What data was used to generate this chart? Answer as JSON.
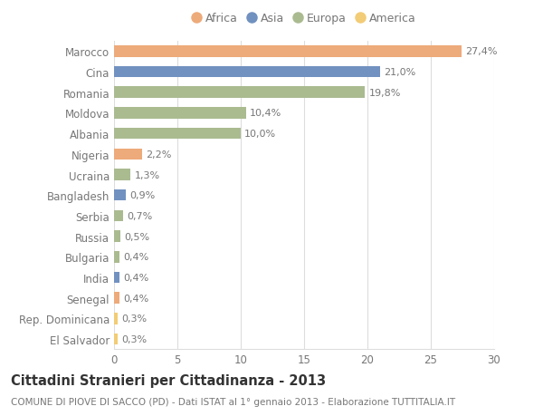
{
  "categories": [
    "El Salvador",
    "Rep. Dominicana",
    "Senegal",
    "India",
    "Bulgaria",
    "Russia",
    "Serbia",
    "Bangladesh",
    "Ucraina",
    "Nigeria",
    "Albania",
    "Moldova",
    "Romania",
    "Cina",
    "Marocco"
  ],
  "values": [
    0.3,
    0.3,
    0.4,
    0.4,
    0.4,
    0.5,
    0.7,
    0.9,
    1.3,
    2.2,
    10.0,
    10.4,
    19.8,
    21.0,
    27.4
  ],
  "continents": [
    "America",
    "America",
    "Africa",
    "Asia",
    "Europa",
    "Europa",
    "Europa",
    "Asia",
    "Europa",
    "Africa",
    "Europa",
    "Europa",
    "Europa",
    "Asia",
    "Africa"
  ],
  "colors": {
    "Africa": "#EDAA7A",
    "Asia": "#7191C0",
    "Europa": "#AABB90",
    "America": "#F2CC76"
  },
  "labels": [
    "0,3%",
    "0,3%",
    "0,4%",
    "0,4%",
    "0,4%",
    "0,5%",
    "0,7%",
    "0,9%",
    "1,3%",
    "2,2%",
    "10,0%",
    "10,4%",
    "19,8%",
    "21,0%",
    "27,4%"
  ],
  "legend_order": [
    "Africa",
    "Asia",
    "Europa",
    "America"
  ],
  "title": "Cittadini Stranieri per Cittadinanza - 2013",
  "subtitle": "COMUNE DI PIOVE DI SACCO (PD) - Dati ISTAT al 1° gennaio 2013 - Elaborazione TUTTITALIA.IT",
  "xlim": [
    0,
    30
  ],
  "xticks": [
    0,
    5,
    10,
    15,
    20,
    25,
    30
  ],
  "background_color": "#FFFFFF",
  "grid_color": "#DDDDDD",
  "bar_height": 0.55,
  "title_fontsize": 10.5,
  "subtitle_fontsize": 7.5,
  "tick_fontsize": 8.5,
  "label_fontsize": 8,
  "label_color": "#777777",
  "ytick_color": "#777777"
}
